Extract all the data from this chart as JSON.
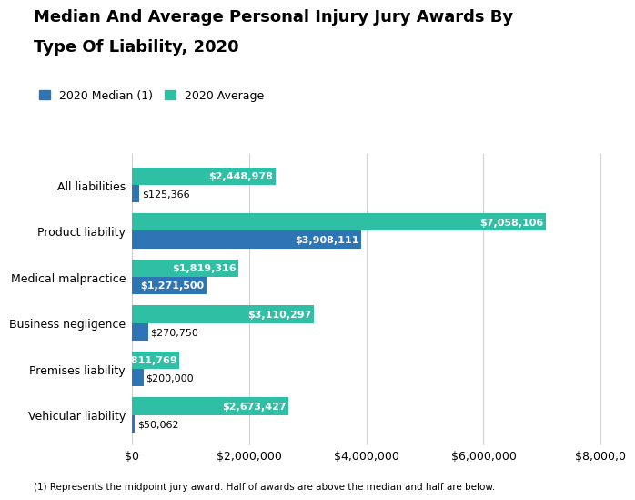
{
  "title_line1": "Median And Average Personal Injury Jury Awards By",
  "title_line2": "Type Of Liability, 2020",
  "categories": [
    "All liabilities",
    "Product liability",
    "Medical malpractice",
    "Business negligence",
    "Premises liability",
    "Vehicular liability"
  ],
  "median_values": [
    125366,
    3908111,
    1271500,
    270750,
    200000,
    50062
  ],
  "average_values": [
    2448978,
    7058106,
    1819316,
    3110297,
    811769,
    2673427
  ],
  "median_labels": [
    "$125,366",
    "$3,908,111",
    "$1,271,500",
    "$270,750",
    "$200,000",
    "$50,062"
  ],
  "average_labels": [
    "$2,448,978",
    "$7,058,106",
    "$1,819,316",
    "$3,110,297",
    "$811,769",
    "$2,673,427"
  ],
  "median_color": "#2E75B6",
  "average_color": "#2EBFA5",
  "legend_median": "2020 Median (1)",
  "legend_average": "2020 Average",
  "xlim": [
    0,
    8200000
  ],
  "xticks": [
    0,
    2000000,
    4000000,
    6000000,
    8000000
  ],
  "xtick_labels": [
    "$0",
    "$2,000,000",
    "$4,000,000",
    "$6,000,000",
    "$8,000,0"
  ],
  "footnote": "(1) Represents the midpoint jury award. Half of awards are above the median and half are below.",
  "bar_height": 0.38,
  "bg_color": "#ffffff",
  "title_fontsize": 13,
  "label_fontsize": 8,
  "tick_fontsize": 9,
  "inside_label_threshold": 400000
}
